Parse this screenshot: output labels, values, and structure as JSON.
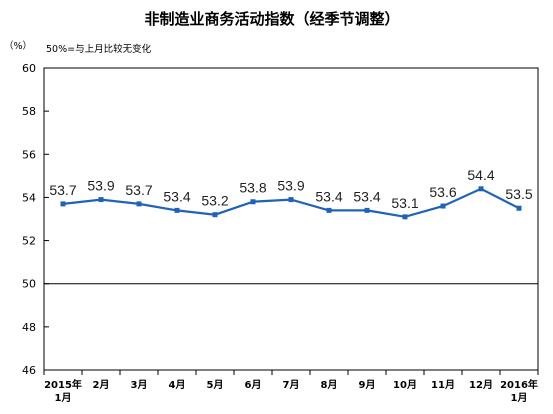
{
  "colors": {
    "series": "#1f63b8",
    "axis": "#000000"
  },
  "chart_data": {
    "type": "line",
    "title": "非制造业商务活动指数（经季节调整）",
    "subtitle": "50%=与上月比较无变化",
    "unit": "（%）",
    "xlabel": "",
    "ylabel": "",
    "ylim": [
      46,
      60
    ],
    "yticks": [
      "46",
      "48",
      "50",
      "52",
      "54",
      "56",
      "58",
      "60"
    ],
    "reference_line": 50,
    "grid": false,
    "categories": [
      [
        "2015年",
        "1月"
      ],
      [
        "2月"
      ],
      [
        "3月"
      ],
      [
        "4月"
      ],
      [
        "5月"
      ],
      [
        "6月"
      ],
      [
        "7月"
      ],
      [
        "8月"
      ],
      [
        "9月"
      ],
      [
        "10月"
      ],
      [
        "11月"
      ],
      [
        "12月"
      ],
      [
        "2016年",
        "1月"
      ]
    ],
    "series": [
      {
        "values": [
          53.7,
          53.9,
          53.7,
          53.4,
          53.2,
          53.8,
          53.9,
          53.4,
          53.4,
          53.1,
          53.6,
          54.4,
          53.5
        ],
        "labels": [
          "53.7",
          "53.9",
          "53.7",
          "53.4",
          "53.2",
          "53.8",
          "53.9",
          "53.4",
          "53.4",
          "53.1",
          "53.6",
          "54.4",
          "53.5"
        ]
      }
    ]
  }
}
